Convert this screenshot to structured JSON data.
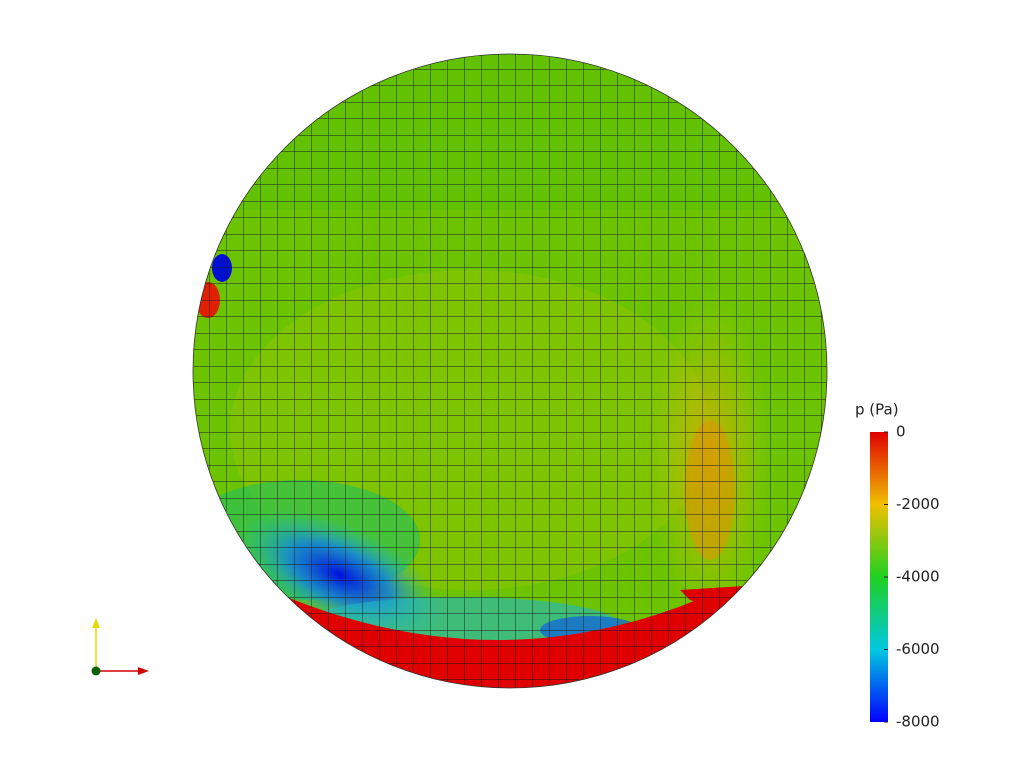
{
  "colorbar": {
    "title": "p (Pa)",
    "lim": [
      -8000,
      0
    ],
    "ticks": [
      0,
      -2000,
      -4000,
      -6000,
      -8000
    ]
  }
}
